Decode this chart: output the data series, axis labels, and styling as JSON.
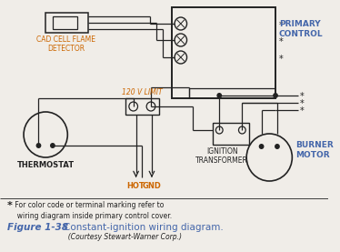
{
  "title_bold": "Figure 1-38",
  "title_main": "Constant-ignition wiring diagram.",
  "title_courtesy": "(Courtesy Stewart-Warner Corp.)",
  "primary_control_label": "PRIMARY\nCONTROL",
  "cad_cell_label": "CAD CELL FLAME\nDETECTOR",
  "thermostat_label": "THERMOSTAT",
  "limit_label": "120 V LIMIT",
  "transformer_label": "IGNITION\nTRANSFORMER",
  "burner_label": "BURNER\nMOTOR",
  "hot_label": "HOT",
  "gnd_label": "GND",
  "footnote_star": "*",
  "footnote_text": " For color code or terminal marking refer to\n  wiring diagram inside primary control cover.",
  "bg_color": "#f0ede8",
  "line_color": "#222222",
  "label_blue": "#4466aa",
  "label_black": "#222222",
  "label_orange": "#cc6600",
  "white": "#ffffff"
}
